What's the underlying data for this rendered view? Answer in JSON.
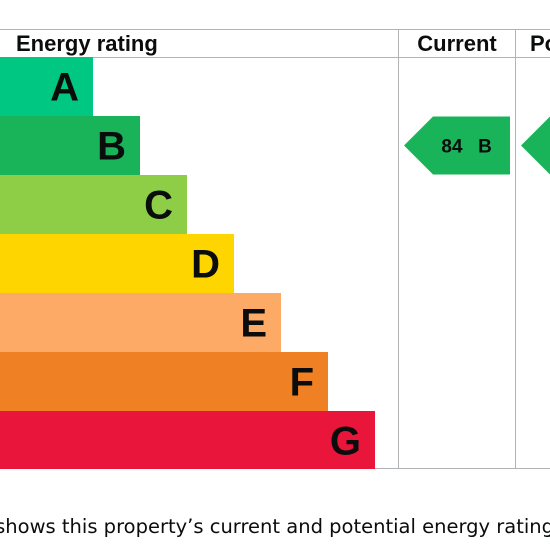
{
  "chart_data": {
    "type": "bar",
    "headers": {
      "rating": "Energy rating",
      "current": "Current",
      "potential": "Po"
    },
    "bands": [
      {
        "letter": "A",
        "color": "#00c781"
      },
      {
        "letter": "B",
        "color": "#19b459"
      },
      {
        "letter": "C",
        "color": "#8dce46"
      },
      {
        "letter": "D",
        "color": "#ffd500"
      },
      {
        "letter": "E",
        "color": "#fcaa65"
      },
      {
        "letter": "F",
        "color": "#ef8023"
      },
      {
        "letter": "G",
        "color": "#e9153b"
      }
    ],
    "current": {
      "score": "84",
      "band": "B",
      "color": "#19b459"
    },
    "potential": {
      "color": "#19b459"
    }
  },
  "caption": "h shows this property’s current and potential energy rating"
}
